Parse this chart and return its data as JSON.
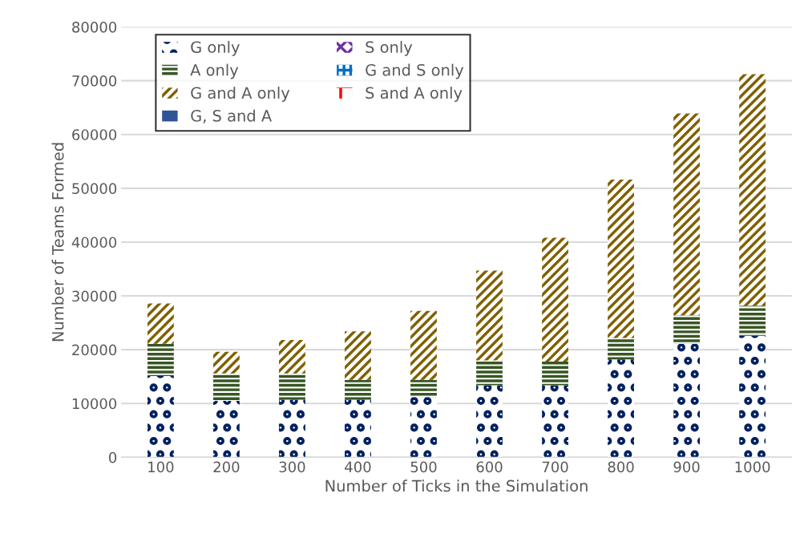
{
  "chart_data": {
    "type": "bar",
    "stacked": true,
    "xlabel": "Number of Ticks in the Simulation",
    "ylabel": "Number of Teams Formed",
    "categories": [
      "100",
      "200",
      "300",
      "400",
      "500",
      "600",
      "700",
      "800",
      "900",
      "1000"
    ],
    "series": [
      {
        "name": "G only",
        "color": "#002060",
        "values": [
          15100,
          10500,
          10700,
          10700,
          11200,
          13400,
          13400,
          18200,
          21100,
          22600
        ]
      },
      {
        "name": "S only",
        "color": "#7030a0",
        "values": [
          0,
          0,
          0,
          0,
          0,
          0,
          0,
          0,
          0,
          0
        ]
      },
      {
        "name": "A only",
        "color": "#375623",
        "values": [
          6000,
          5100,
          4900,
          3700,
          3200,
          4600,
          4400,
          4000,
          5300,
          5600
        ]
      },
      {
        "name": "G and S only",
        "color": "#0070c0",
        "values": [
          0,
          0,
          0,
          0,
          0,
          0,
          0,
          0,
          0,
          0
        ]
      },
      {
        "name": "G and A only",
        "color": "#806000",
        "values": [
          7500,
          4000,
          6200,
          9000,
          12800,
          16700,
          23000,
          29400,
          37500,
          43000
        ]
      },
      {
        "name": "S and A only",
        "color": "#ff0000",
        "values": [
          0,
          0,
          0,
          0,
          0,
          0,
          0,
          0,
          0,
          0
        ]
      },
      {
        "name": "G, S and A",
        "color": "#2f5597",
        "values": [
          0,
          0,
          0,
          0,
          0,
          0,
          0,
          0,
          0,
          0
        ]
      }
    ],
    "ylim": [
      0,
      80000
    ],
    "yticks": [
      0,
      10000,
      20000,
      30000,
      40000,
      50000,
      60000,
      70000,
      80000
    ],
    "grid": "y",
    "legend": "top left"
  }
}
